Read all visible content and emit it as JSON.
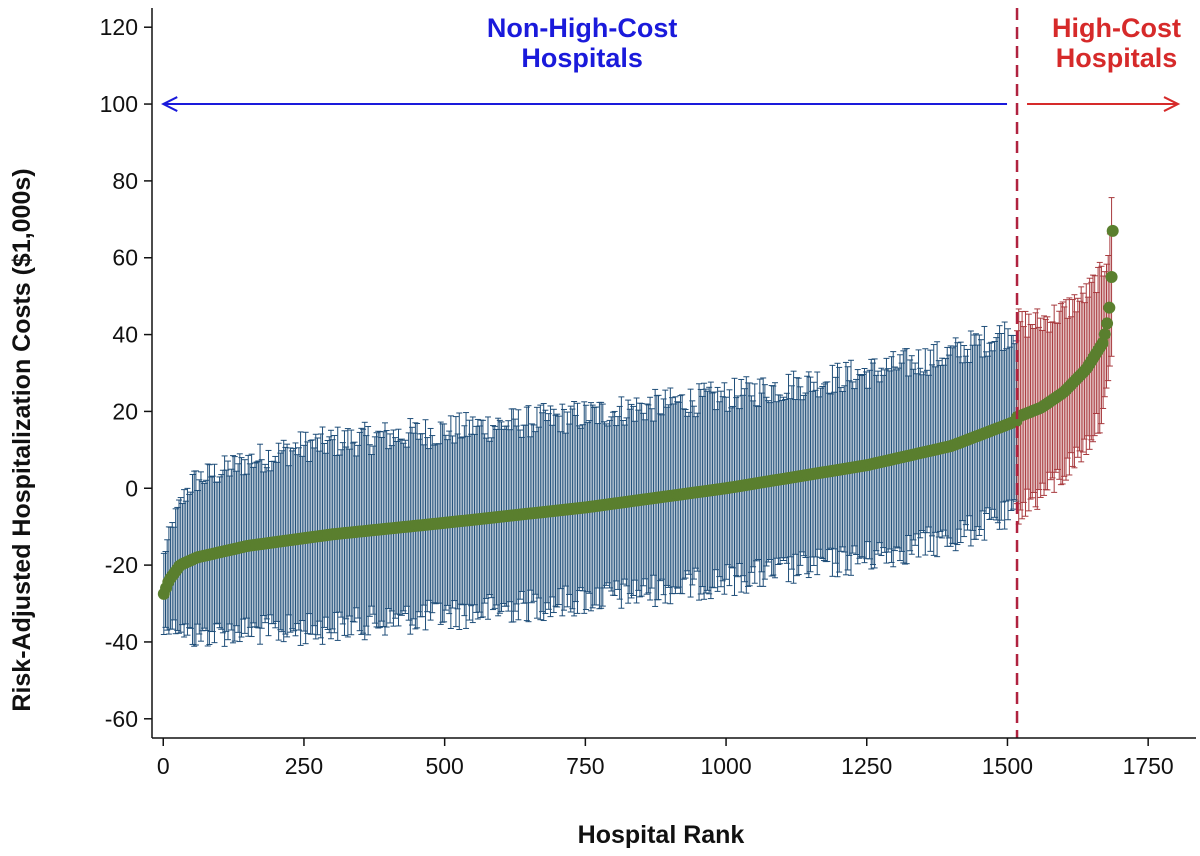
{
  "chart_data": {
    "type": "scatter",
    "xlabel": "Hospital Rank",
    "ylabel": "Risk-Adjusted Hospitalization Costs ($1,000s)",
    "xlim": [
      -20,
      1835
    ],
    "ylim": [
      -65,
      125
    ],
    "x_ticks": [
      0,
      250,
      500,
      750,
      1000,
      1250,
      1500,
      1750
    ],
    "y_ticks": [
      -60,
      -40,
      -20,
      0,
      20,
      40,
      60,
      80,
      100,
      120
    ],
    "grid": false,
    "n_hospitals": 1687,
    "cutoff_rank": 1517,
    "series": [
      {
        "name": "Non-High-Cost Hospitals",
        "color": "#1f4e79",
        "rank_range": [
          1,
          1516
        ],
        "point_color": "#5a7f2e",
        "curve": [
          [
            1,
            -27.5
          ],
          [
            10,
            -24
          ],
          [
            30,
            -20
          ],
          [
            60,
            -18
          ],
          [
            150,
            -15
          ],
          [
            300,
            -12
          ],
          [
            500,
            -9
          ],
          [
            750,
            -5
          ],
          [
            1000,
            0
          ],
          [
            1250,
            6
          ],
          [
            1400,
            11
          ],
          [
            1516,
            17.5
          ]
        ],
        "ci_halfwidth": [
          [
            1,
            10
          ],
          [
            50,
            20
          ],
          [
            250,
            24
          ],
          [
            1516,
            24
          ]
        ]
      },
      {
        "name": "High-Cost Hospitals",
        "color": "#a83a3e",
        "rank_range": [
          1517,
          1687
        ],
        "point_color": "#5a7f2e",
        "curve": [
          [
            1517,
            18.5
          ],
          [
            1560,
            21
          ],
          [
            1600,
            25
          ],
          [
            1640,
            31
          ],
          [
            1670,
            38
          ],
          [
            1680,
            45
          ],
          [
            1685,
            55
          ],
          [
            1687,
            67
          ]
        ],
        "ci_halfwidth": [
          [
            1517,
            24
          ],
          [
            1687,
            18
          ]
        ]
      }
    ],
    "annotations": [
      {
        "text_lines": [
          "Non-High-Cost",
          "Hospitals"
        ],
        "color": "#1a1adb",
        "arrow": "left",
        "arrow_y": 100
      },
      {
        "text_lines": [
          "High-Cost",
          "Hospitals"
        ],
        "color": "#d62a2a",
        "arrow": "right",
        "arrow_y": 100
      }
    ],
    "reference_line": {
      "x": 1517,
      "style": "dashed",
      "color": "#b0223f"
    }
  }
}
